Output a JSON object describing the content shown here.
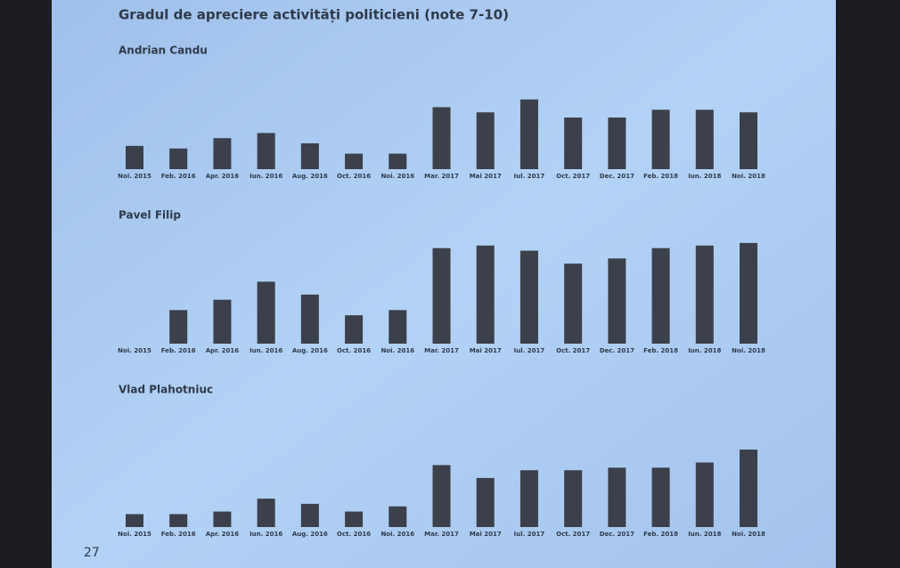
{
  "slide": {
    "title": "Gradul de apreciere activități politicieni (note 7-10)",
    "page_number": "27"
  },
  "chart_data": [
    {
      "type": "bar",
      "title": "Andrian Candu",
      "color": "#3b404b",
      "categories": [
        "Noi. 2015",
        "Feb. 2016",
        "Apr. 2016",
        "Iun. 2016",
        "Aug. 2016",
        "Oct. 2016",
        "Noi. 2016",
        "Mar. 2017",
        "Mai 2017",
        "Iul. 2017",
        "Oct. 2017",
        "Dec. 2017",
        "Feb. 2018",
        "Iun. 2018",
        "Noi. 2018"
      ],
      "values": [
        9,
        8,
        12,
        14,
        10,
        6,
        6,
        24,
        22,
        27,
        20,
        20,
        23,
        23,
        22
      ]
    },
    {
      "type": "bar",
      "title": "Pavel Filip",
      "color": "#3b404b",
      "categories": [
        "Noi. 2015",
        "Feb. 2016",
        "Apr. 2016",
        "Iun. 2016",
        "Aug. 2016",
        "Oct. 2016",
        "Noi. 2016",
        "Mar. 2017",
        "Mai 2017",
        "Iul. 2017",
        "Oct. 2017",
        "Dec. 2017",
        "Feb. 2018",
        "Iun. 2018",
        "Noi. 2018"
      ],
      "values": [
        null,
        13,
        17,
        24,
        19,
        11,
        13,
        37,
        38,
        36,
        31,
        33,
        37,
        38,
        39
      ]
    },
    {
      "type": "bar",
      "title": "Vlad Plahotniuc",
      "color": "#3b404b",
      "categories": [
        "Noi. 2015",
        "Feb. 2016",
        "Apr. 2016",
        "Iun. 2016",
        "Aug. 2016",
        "Oct. 2016",
        "Noi. 2016",
        "Mar. 2017",
        "Mai 2017",
        "Iul. 2017",
        "Oct. 2017",
        "Dec. 2017",
        "Feb. 2018",
        "Iun. 2018",
        "Noi. 2018"
      ],
      "values": [
        5,
        5,
        6,
        11,
        9,
        6,
        8,
        24,
        19,
        22,
        22,
        23,
        23,
        25,
        30
      ]
    }
  ]
}
